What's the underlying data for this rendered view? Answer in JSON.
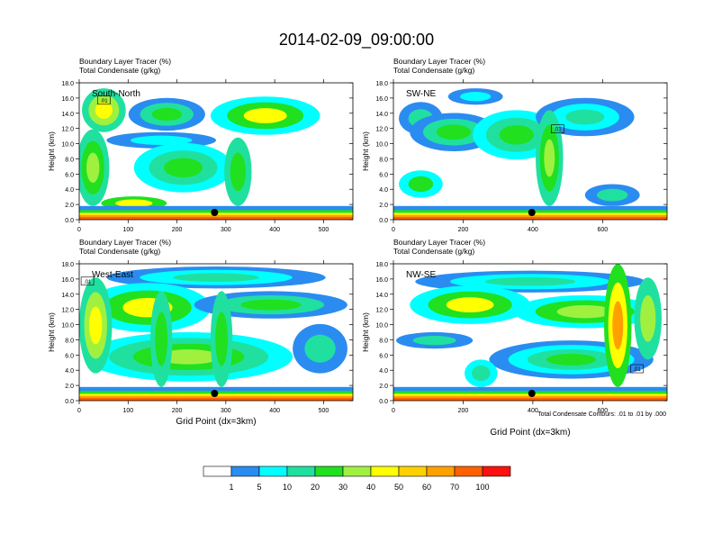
{
  "title": "2014-02-09_09:00:00",
  "footnote": "Total Condensate Contours: .01 to .01 by .000",
  "colors": [
    "#ffffff",
    "#2a8cf0",
    "#00ffff",
    "#20e0a0",
    "#20e020",
    "#a0f040",
    "#ffff00",
    "#ffd000",
    "#ffa000",
    "#ff6000",
    "#ff1010"
  ],
  "colorbar_labels": [
    "1",
    "5",
    "10",
    "20",
    "30",
    "40",
    "50",
    "60",
    "70",
    "100"
  ],
  "chart_data": [
    {
      "type": "heatmap",
      "panel_label": "South-North",
      "field_label": "Boundary Layer Tracer   (%)",
      "contour_label": "Total Condensate   (g/kg)",
      "ylabel": "Height (km)",
      "xlabel": "",
      "xlim": [
        0,
        560
      ],
      "ylim": [
        0,
        18
      ],
      "xticks": [
        "0",
        "100",
        "200",
        "300",
        "400",
        "500"
      ],
      "yticks": [
        "0.0",
        "2.0",
        "4.0",
        "6.0",
        "8.0",
        "10.0",
        "12.0",
        "14.0",
        "16.0",
        "18.0"
      ],
      "contour_value_label": ".01",
      "marker_x": 277
    },
    {
      "type": "heatmap",
      "panel_label": "SW-NE",
      "field_label": "Boundary Layer Tracer   (%)",
      "contour_label": "Total Condensate   (g/kg)",
      "ylabel": "Height (km)",
      "xlabel": "",
      "xlim": [
        0,
        785
      ],
      "ylim": [
        0,
        18
      ],
      "xticks": [
        "0",
        "200",
        "400",
        "600"
      ],
      "yticks": [
        "0.0",
        "2.0",
        "4.0",
        "6.0",
        "8.0",
        "10.0",
        "12.0",
        "14.0",
        "16.0",
        "18.0"
      ],
      "contour_value_label": ".01",
      "marker_x": 397
    },
    {
      "type": "heatmap",
      "panel_label": "West-East",
      "field_label": "Boundary Layer Tracer   (%)",
      "contour_label": "Total Condensate   (g/kg)",
      "ylabel": "Height (km)",
      "xlabel": "Grid Point (dx=3km)",
      "xlim": [
        0,
        560
      ],
      "ylim": [
        0,
        18
      ],
      "xticks": [
        "0",
        "100",
        "200",
        "300",
        "400",
        "500"
      ],
      "yticks": [
        "0.0",
        "2.0",
        "4.0",
        "6.0",
        "8.0",
        "10.0",
        "12.0",
        "14.0",
        "16.0",
        "18.0"
      ],
      "contour_value_label": ".01",
      "marker_x": 277
    },
    {
      "type": "heatmap",
      "panel_label": "NW-SE",
      "field_label": "Boundary Layer Tracer   (%)",
      "contour_label": "Total Condensate   (g/kg)",
      "ylabel": "Height (km)",
      "xlabel": "Grid Point (dx=3km)",
      "xlim": [
        0,
        785
      ],
      "ylim": [
        0,
        18
      ],
      "xticks": [
        "0",
        "200",
        "400",
        "600"
      ],
      "yticks": [
        "0.0",
        "2.0",
        "4.0",
        "6.0",
        "8.0",
        "10.0",
        "12.0",
        "14.0",
        "16.0",
        "18.0"
      ],
      "contour_value_label": ".01",
      "marker_x": 397
    }
  ]
}
